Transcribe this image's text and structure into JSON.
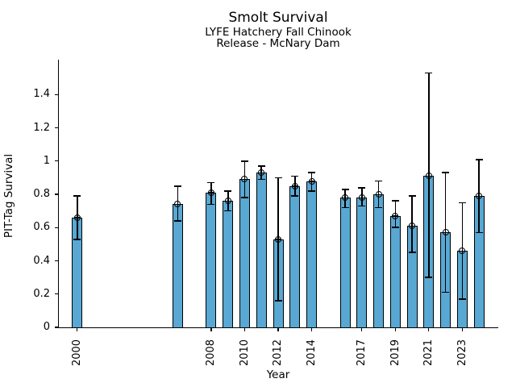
{
  "chart_data": {
    "type": "bar",
    "title": "Smolt Survival",
    "subtitle": [
      "LYFE Hatchery Fall Chinook",
      "Release - McNary Dam"
    ],
    "xlabel": "Year",
    "ylabel": "PIT-Tag Survival",
    "xlim": [
      1998.9,
      2025.1
    ],
    "ylim": [
      0,
      1.61
    ],
    "xticks": [
      2000,
      2008,
      2010,
      2012,
      2014,
      2017,
      2019,
      2021,
      2023
    ],
    "yticks": [
      {
        "value": 0,
        "label": "0"
      },
      {
        "value": 0.2,
        "label": "0.2"
      },
      {
        "value": 0.4,
        "label": "0.4"
      },
      {
        "value": 0.6,
        "label": "0.6"
      },
      {
        "value": 0.8,
        "label": "0.8"
      },
      {
        "value": 1,
        "label": "1"
      },
      {
        "value": 1.2,
        "label": "1.2"
      },
      {
        "value": 1.4,
        "label": "1.4"
      }
    ],
    "grid": false,
    "legend": null,
    "bar_width_years": 0.62,
    "colors": {
      "bar_fill": "#58A8D3",
      "bar_edge": "#000000",
      "error": "#000000",
      "text": "#000000",
      "background": "#ffffff"
    },
    "series": [
      {
        "name": "PIT-Tag Survival",
        "points": [
          {
            "year": 2000,
            "value": 0.66,
            "ci_low": 0.53,
            "ci_high": 0.79
          },
          {
            "year": 2006,
            "value": 0.74,
            "ci_low": 0.64,
            "ci_high": 0.85
          },
          {
            "year": 2008,
            "value": 0.81,
            "ci_low": 0.74,
            "ci_high": 0.87
          },
          {
            "year": 2009,
            "value": 0.76,
            "ci_low": 0.7,
            "ci_high": 0.82
          },
          {
            "year": 2010,
            "value": 0.89,
            "ci_low": 0.78,
            "ci_high": 1.0
          },
          {
            "year": 2011,
            "value": 0.93,
            "ci_low": 0.89,
            "ci_high": 0.97
          },
          {
            "year": 2012,
            "value": 0.53,
            "ci_low": 0.16,
            "ci_high": 0.9
          },
          {
            "year": 2013,
            "value": 0.85,
            "ci_low": 0.79,
            "ci_high": 0.91
          },
          {
            "year": 2014,
            "value": 0.88,
            "ci_low": 0.82,
            "ci_high": 0.93
          },
          {
            "year": 2016,
            "value": 0.78,
            "ci_low": 0.72,
            "ci_high": 0.83
          },
          {
            "year": 2017,
            "value": 0.78,
            "ci_low": 0.73,
            "ci_high": 0.84
          },
          {
            "year": 2018,
            "value": 0.8,
            "ci_low": 0.72,
            "ci_high": 0.88
          },
          {
            "year": 2019,
            "value": 0.67,
            "ci_low": 0.6,
            "ci_high": 0.76
          },
          {
            "year": 2020,
            "value": 0.61,
            "ci_low": 0.45,
            "ci_high": 0.79
          },
          {
            "year": 2021,
            "value": 0.91,
            "ci_low": 0.3,
            "ci_high": 1.53
          },
          {
            "year": 2022,
            "value": 0.57,
            "ci_low": 0.21,
            "ci_high": 0.93
          },
          {
            "year": 2023,
            "value": 0.46,
            "ci_low": 0.17,
            "ci_high": 0.75
          },
          {
            "year": 2024,
            "value": 0.79,
            "ci_low": 0.57,
            "ci_high": 1.01
          }
        ]
      }
    ]
  }
}
